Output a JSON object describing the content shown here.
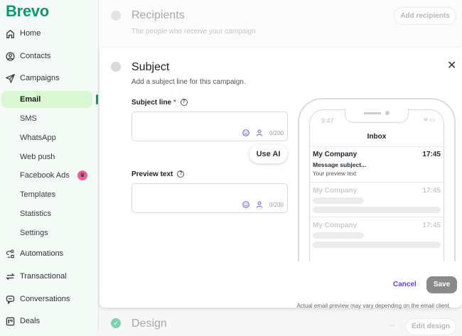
{
  "sidebar": {
    "logo": "Brevo",
    "items": [
      {
        "label": "Home",
        "icon": "home-icon"
      },
      {
        "label": "Contacts",
        "icon": "contacts-icon"
      },
      {
        "label": "Campaigns",
        "icon": "send-icon"
      }
    ],
    "campaign_sub": [
      "Email",
      "SMS",
      "WhatsApp",
      "Web push",
      "Facebook Ads",
      "Templates",
      "Statistics",
      "Settings"
    ],
    "bottom_items": [
      {
        "label": "Automations",
        "icon": "automations-icon"
      },
      {
        "label": "Transactional",
        "icon": "transactional-icon"
      },
      {
        "label": "Conversations",
        "icon": "conversations-icon"
      },
      {
        "label": "Deals",
        "icon": "deals-icon"
      }
    ],
    "active": "Email",
    "accent": "#0b996e"
  },
  "recipients": {
    "title": "Recipients",
    "subtitle": "The people who receive your campaign",
    "button": "Add recipients"
  },
  "subject": {
    "title": "Subject",
    "subtitle": "Add a subject line for this campaign.",
    "subject_label": "Subject line",
    "required": "*",
    "subject_value": "",
    "subject_count": "0/200",
    "use_ai": "Use AI",
    "preview_label": "Preview text",
    "preview_value": "",
    "preview_count": "0/200",
    "cancel": "Cancel",
    "save": "Save"
  },
  "phone": {
    "time": "9:47",
    "inbox": "Inbox",
    "mails": [
      {
        "sender": "My Company",
        "time": "17:45",
        "subject": "Message subject...",
        "preview": "Your preview text"
      },
      {
        "sender": "My Company",
        "time": "17:45"
      },
      {
        "sender": "My Company",
        "time": "17:45"
      }
    ],
    "disclaimer": "Actual email preview may vary depending on the email client."
  },
  "design": {
    "title": "Design",
    "more": "...",
    "button": "Edit design"
  }
}
